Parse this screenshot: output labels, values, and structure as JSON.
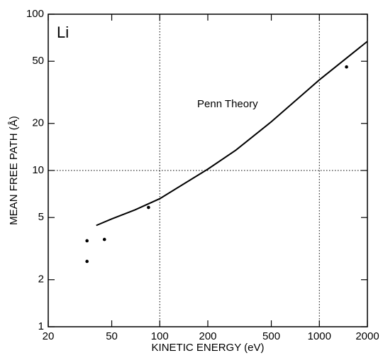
{
  "chart_data": {
    "type": "scatter",
    "annotation": "Li",
    "x_label": "KINETIC ENERGY (eV)",
    "y_label": "MEAN FREE PATH (Å)",
    "xscale": "log",
    "yscale": "log",
    "xlim": [
      20,
      2000
    ],
    "ylim": [
      1,
      100
    ],
    "xticks": [
      20,
      50,
      100,
      200,
      500,
      1000,
      2000
    ],
    "yticks": [
      1,
      2,
      5,
      10,
      20,
      50,
      100
    ],
    "grid_x": [
      100,
      1000
    ],
    "grid_y": [
      10
    ],
    "points": {
      "color": "#000000",
      "x": [
        35,
        35,
        45,
        85,
        1480
      ],
      "y": [
        3.55,
        2.62,
        3.62,
        5.8,
        46
      ]
    },
    "curve": {
      "label": "Penn Theory",
      "color": "#000000",
      "x": [
        40,
        50,
        70,
        100,
        200,
        300,
        500,
        1000,
        2000
      ],
      "y": [
        4.45,
        4.9,
        5.6,
        6.6,
        10.2,
        13.5,
        20.5,
        38,
        67
      ]
    }
  }
}
